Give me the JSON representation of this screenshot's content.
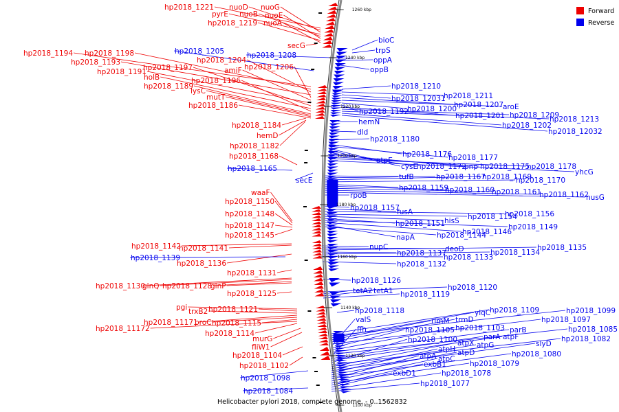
{
  "caption": "Helicobacter pylori 2018, complete genome. - 0..1562832",
  "legend": [
    {
      "label": "Forward",
      "color": "#ee0000"
    },
    {
      "label": "Reverse",
      "color": "#0000ee"
    }
  ],
  "ticks": [
    "1260 kbp",
    "1240 kbp",
    "1220 kbp",
    "1200 kbp",
    "1180 kbp",
    "1160 kbp",
    "1140 kbp",
    "1120 kbp",
    "1100 kbp"
  ],
  "forward_labels": [
    "hp2018_1221",
    "nuoD",
    "nuoG",
    "pyrE",
    "nuoB",
    "nuoE",
    "hp2018_1219",
    "nuoA",
    "secG",
    "hp2018_1194",
    "hp2018_1198",
    "hp2018_1204",
    "hp2018_1193",
    "hp2018_1206",
    "amiF",
    "hp2018_1191",
    "hp2018_1197",
    "holB",
    "hp2018_1196",
    "hp2018_1189",
    "lysC",
    "mutT",
    "hp2018_1186",
    "hp2018_1184",
    "hemD",
    "hp2018_1182",
    "hp2018_1168",
    "waaF",
    "hp2018_1150",
    "hp2018_1148",
    "hp2018_1147",
    "hp2018_1145",
    "hp2018_1142",
    "hp2018_1141",
    "hp2018_1136",
    "hp2018_1131",
    "hp2018_1130",
    "glnQ",
    "hp2018_1128",
    "glnP",
    "hp2018_1125",
    "pgi",
    "hp2018_1121",
    "trxB2",
    "hp2018_11171",
    "proC",
    "hp2018_1115",
    "hp2018_11172",
    "hp2018_1114",
    "murG",
    "fliW1",
    "hp2018_1104",
    "hp2018_1102"
  ],
  "reverse_labels": [
    "bioC",
    "trpS",
    "hp2018_1205",
    "hp2018_1208",
    "oppA",
    "oppB",
    "hp2018_1210",
    "hp2018_1211",
    "hp2018_12031",
    "hp2018_1207",
    "aroE",
    "hp2018_1200",
    "hp2018_1192",
    "hp2018_1201",
    "hp2018_1209",
    "hp2018_1213",
    "hp2018_1202",
    "hp2018_12032",
    "hemN",
    "dld",
    "hp2018_1180",
    "hp2018_1176",
    "hp2018_1177",
    "atpE",
    "cysE",
    "hp2018_1172",
    "pnp",
    "hp2018_1175",
    "hp2018_1178",
    "yhcG",
    "hp2018_1165",
    "secE",
    "tufB",
    "hp2018_1167",
    "hp2018_1169",
    "hp2018_1170",
    "hp2018_1159",
    "hp2018_1160",
    "hp2018_1161",
    "hp2018_1162",
    "nusG",
    "rpoB",
    "hp2018_1157",
    "fusA",
    "hp2018_1156",
    "hp2018_1154",
    "hisS",
    "hp2018_1151",
    "hp2018_1149",
    "hp2018_1146",
    "napA",
    "hp2018_1144",
    "nupC",
    "deoD",
    "hp2018_1135",
    "hp2018_1137",
    "hp2018_1134",
    "hp2018_1139",
    "hp2018_1133",
    "hp2018_1132",
    "hp2018_1126",
    "hp2018_1120",
    "tetA2",
    "tetA1",
    "hp2018_1119",
    "hp2018_1118",
    "hp2018_1109",
    "hp2018_1099",
    "ylqC",
    "rimM",
    "trmD",
    "hp2018_1097",
    "valS",
    "hp2018_1105",
    "hp2018_1103",
    "parB",
    "hp2018_1085",
    "ffh",
    "parA",
    "atpF",
    "hp2018_1100",
    "hp2018_1082",
    "atpX",
    "atpG",
    "slyD",
    "atpH",
    "atpD",
    "hp2018_1080",
    "atpA",
    "atpC",
    "hp2018_1079",
    "exbB1",
    "exbD1",
    "hp2018_1078",
    "hp2018_1098",
    "hp2018_1077",
    "hp2018_1084"
  ]
}
